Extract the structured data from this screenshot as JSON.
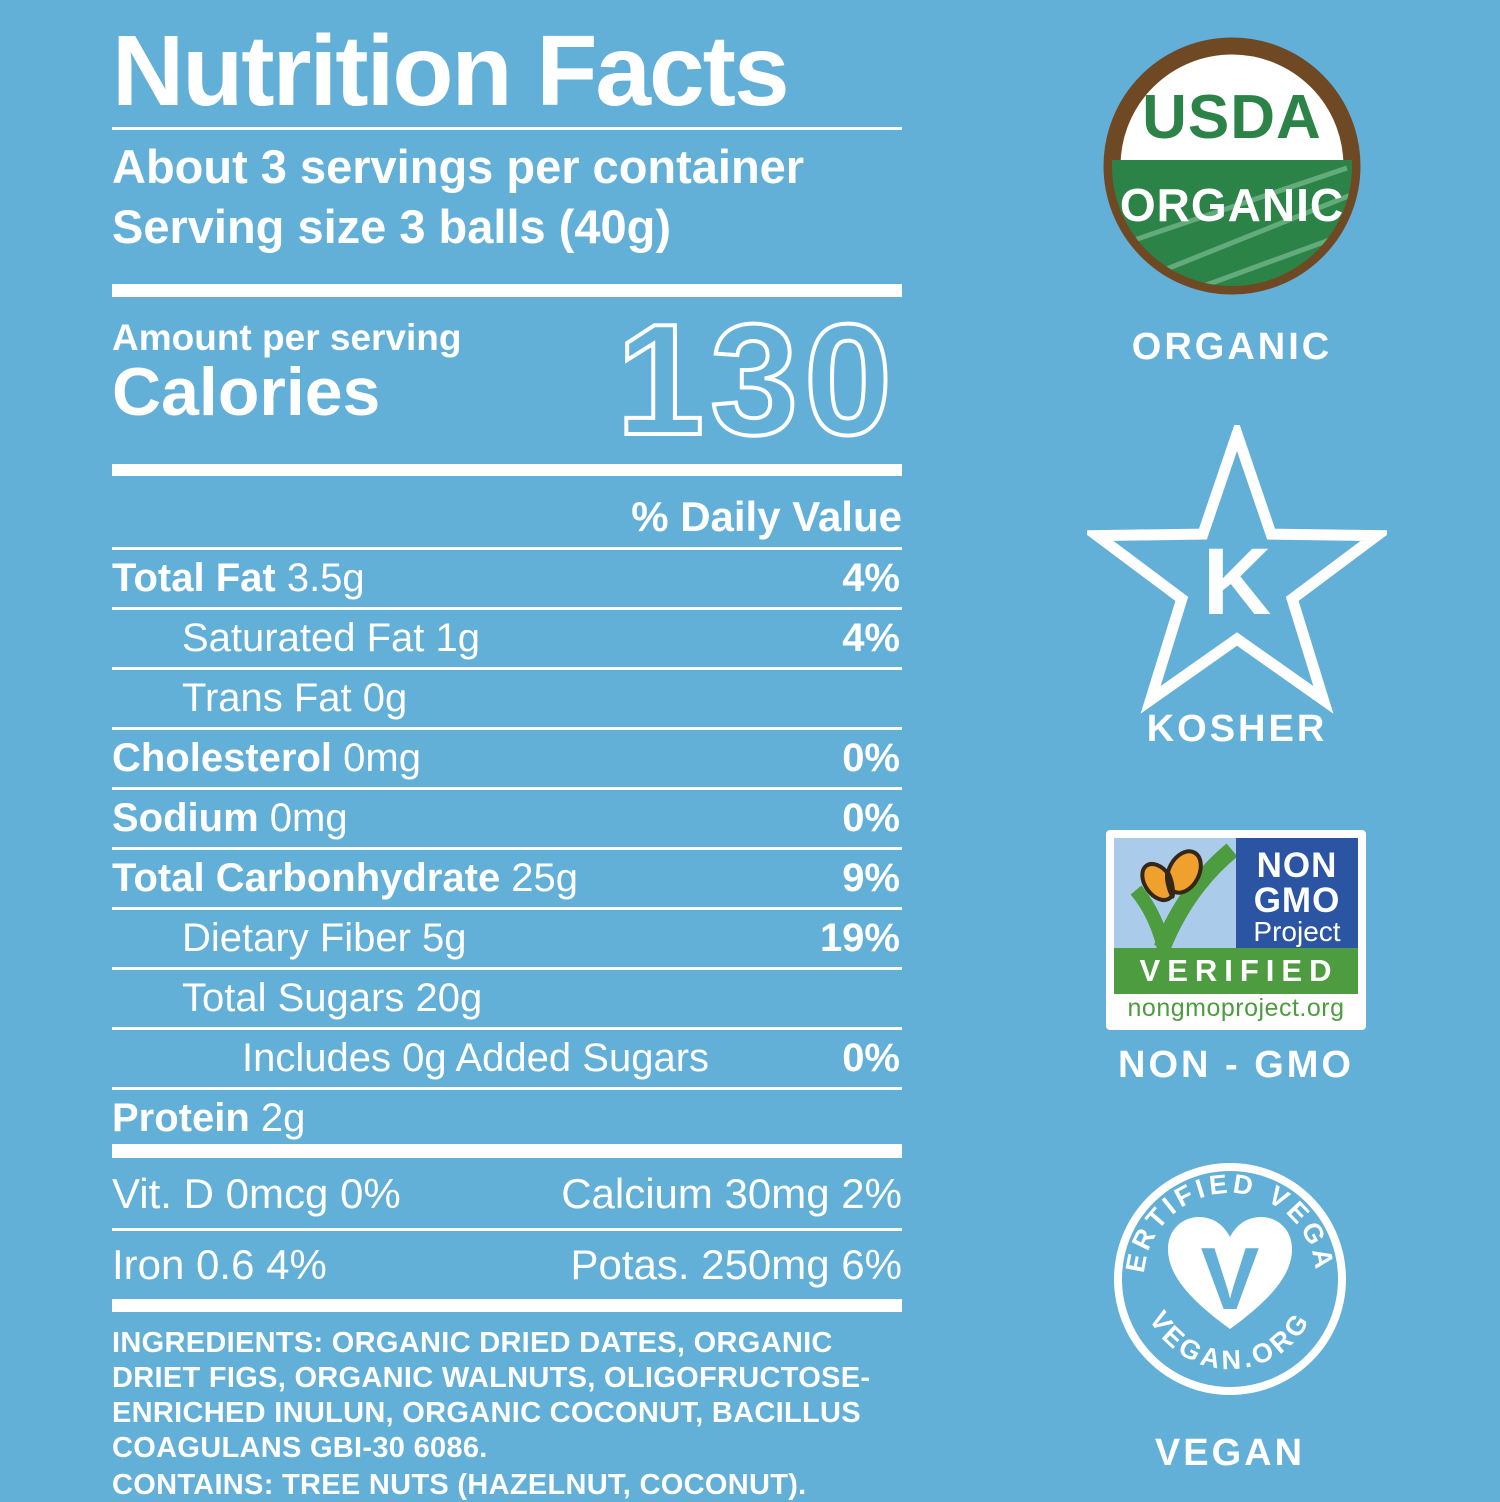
{
  "colors": {
    "background": "#62AFD7",
    "text": "#FFFFFF",
    "usda_brown": "#6F4923",
    "usda_green": "#2C8347",
    "usda_stripe": "#6FB387",
    "nongmo_dark_blue": "#2B55A3",
    "nongmo_light_blue": "#AACBE9",
    "nongmo_green": "#4E9C40",
    "butterfly_orange": "#F0A02C",
    "butterfly_body": "#352718"
  },
  "label": {
    "title": "Nutrition Facts",
    "servings_per_container": "About 3 servings per container",
    "serving_size": "Serving size 3 balls (40g)",
    "amount_per_serving": "Amount per serving",
    "calories_label": "Calories",
    "calories_value": "130",
    "daily_value_header": "% Daily Value",
    "rows": [
      {
        "bold": "Total Fat",
        "rest": "3.5g",
        "dv": "4%",
        "indent": 0
      },
      {
        "bold": "",
        "rest": "Saturated Fat 1g",
        "dv": "4%",
        "indent": 1
      },
      {
        "bold": "",
        "rest": "Trans Fat 0g",
        "dv": "",
        "indent": 1
      },
      {
        "bold": "Cholesterol",
        "rest": "0mg",
        "dv": "0%",
        "indent": 0
      },
      {
        "bold": "Sodium",
        "rest": "0mg",
        "dv": "0%",
        "indent": 0
      },
      {
        "bold": "Total Carbonhydrate",
        "rest": "25g",
        "dv": "9%",
        "indent": 0
      },
      {
        "bold": "",
        "rest": "Dietary Fiber 5g",
        "dv": "19%",
        "indent": 1
      },
      {
        "bold": "",
        "rest": "Total Sugars 20g",
        "dv": "",
        "indent": 1
      },
      {
        "bold": "",
        "rest": "Includes 0g Added Sugars",
        "dv": "0%",
        "indent": 2
      },
      {
        "bold": "Protein",
        "rest": "2g",
        "dv": "",
        "indent": 0
      }
    ],
    "micronutrients": [
      {
        "left": "Vit. D 0mcg 0%",
        "right": "Calcium 30mg 2%"
      },
      {
        "left": "Iron 0.6 4%",
        "right": "Potas. 250mg 6%"
      }
    ],
    "ingredients": "INGREDIENTS: ORGANIC DRIED DATES, ORGANIC DRIET FIGS, ORGANIC WALNUTS, OLIGOFRUCTOSE-ENRICHED INULUN, ORGANIC COCONUT, BACILLUS COAGULANS GBI-30 6086.",
    "contains": "CONTAINS: TREE NUTS (HAZELNUT, COCONUT)."
  },
  "badges": {
    "organic": {
      "seal_top": "USDA",
      "seal_bottom": "ORGANIC",
      "label": "ORGANIC"
    },
    "kosher": {
      "letter": "K",
      "label": "KOSHER"
    },
    "nongmo": {
      "line1": "NON",
      "line2": "GMO",
      "line3": "Project",
      "verified": "VERIFIED",
      "url": "nongmoproject.org",
      "label": "NON - GMO"
    },
    "vegan": {
      "arc_top": "CERTIFIED VEGAN",
      "arc_bottom": "VEGAN.ORG",
      "letter": "V",
      "label": "VEGAN"
    }
  }
}
